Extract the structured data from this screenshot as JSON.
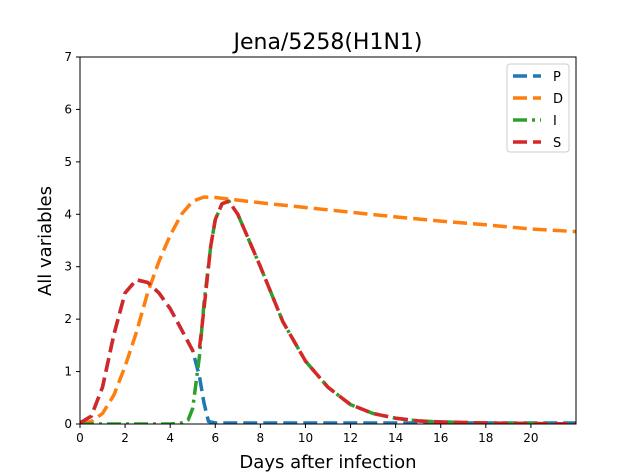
{
  "chart_data": {
    "type": "line",
    "title": "Jena/5258(H1N1)",
    "xlabel": "Days after infection",
    "ylabel": "All variables",
    "xlim": [
      0,
      22
    ],
    "ylim": [
      0,
      7
    ],
    "xticks": [
      0,
      2,
      4,
      6,
      8,
      10,
      12,
      14,
      16,
      18,
      20
    ],
    "yticks": [
      0,
      1,
      2,
      3,
      4,
      5,
      6,
      7
    ],
    "grid": false,
    "legend_position": "top-right",
    "series": [
      {
        "name": "P",
        "color": "#1f77b4",
        "dash": "dashed",
        "x": [
          0,
          0.5,
          1,
          1.5,
          2,
          2.5,
          3,
          3.5,
          4,
          4.5,
          5,
          5.3,
          5.5,
          5.7,
          6,
          8,
          10,
          12,
          14,
          16,
          18,
          20,
          22
        ],
        "y": [
          0.02,
          0.15,
          0.7,
          1.7,
          2.5,
          2.75,
          2.7,
          2.5,
          2.2,
          1.8,
          1.4,
          0.9,
          0.4,
          0.05,
          0.02,
          0.02,
          0.02,
          0.02,
          0.02,
          0.02,
          0.02,
          0.02,
          0.02
        ]
      },
      {
        "name": "D",
        "color": "#ff7f0e",
        "dash": "dashed",
        "x": [
          0,
          0.5,
          1,
          1.5,
          2,
          2.5,
          3,
          3.5,
          4,
          4.5,
          5,
          5.5,
          6,
          7,
          8,
          10,
          12,
          14,
          16,
          18,
          20,
          22
        ],
        "y": [
          0.0,
          0.05,
          0.2,
          0.55,
          1.1,
          1.75,
          2.5,
          3.1,
          3.6,
          4.0,
          4.25,
          4.33,
          4.32,
          4.27,
          4.22,
          4.13,
          4.04,
          3.95,
          3.87,
          3.8,
          3.72,
          3.67
        ]
      },
      {
        "name": "I",
        "color": "#2ca02c",
        "dash": "dashdot",
        "x": [
          0,
          2,
          4,
          4.5,
          4.8,
          5,
          5.3,
          5.5,
          5.8,
          6,
          6.3,
          6.6,
          7,
          8,
          9,
          10,
          11,
          12,
          13,
          14,
          15,
          16,
          18,
          20,
          22
        ],
        "y": [
          0.0,
          0.0,
          0.0,
          0.02,
          0.08,
          0.3,
          1.3,
          2.3,
          3.4,
          3.9,
          4.2,
          4.25,
          4.0,
          3.0,
          1.95,
          1.2,
          0.7,
          0.37,
          0.2,
          0.11,
          0.06,
          0.04,
          0.02,
          0.01,
          0.0
        ]
      },
      {
        "name": "S",
        "color": "#d62728",
        "dash": "dashed",
        "x": [
          0,
          0.5,
          1,
          1.5,
          2,
          2.5,
          3,
          3.5,
          4,
          4.5,
          5,
          5.3,
          5.5,
          5.8,
          6,
          6.3,
          6.6,
          7,
          8,
          9,
          10,
          11,
          12,
          13,
          14,
          15,
          16,
          18,
          20,
          22
        ],
        "y": [
          0.02,
          0.15,
          0.7,
          1.7,
          2.5,
          2.75,
          2.7,
          2.5,
          2.2,
          1.8,
          1.4,
          1.45,
          2.2,
          3.4,
          3.9,
          4.2,
          4.25,
          4.0,
          3.0,
          1.95,
          1.2,
          0.7,
          0.37,
          0.2,
          0.11,
          0.06,
          0.04,
          0.02,
          0.01,
          0.0
        ]
      }
    ]
  }
}
